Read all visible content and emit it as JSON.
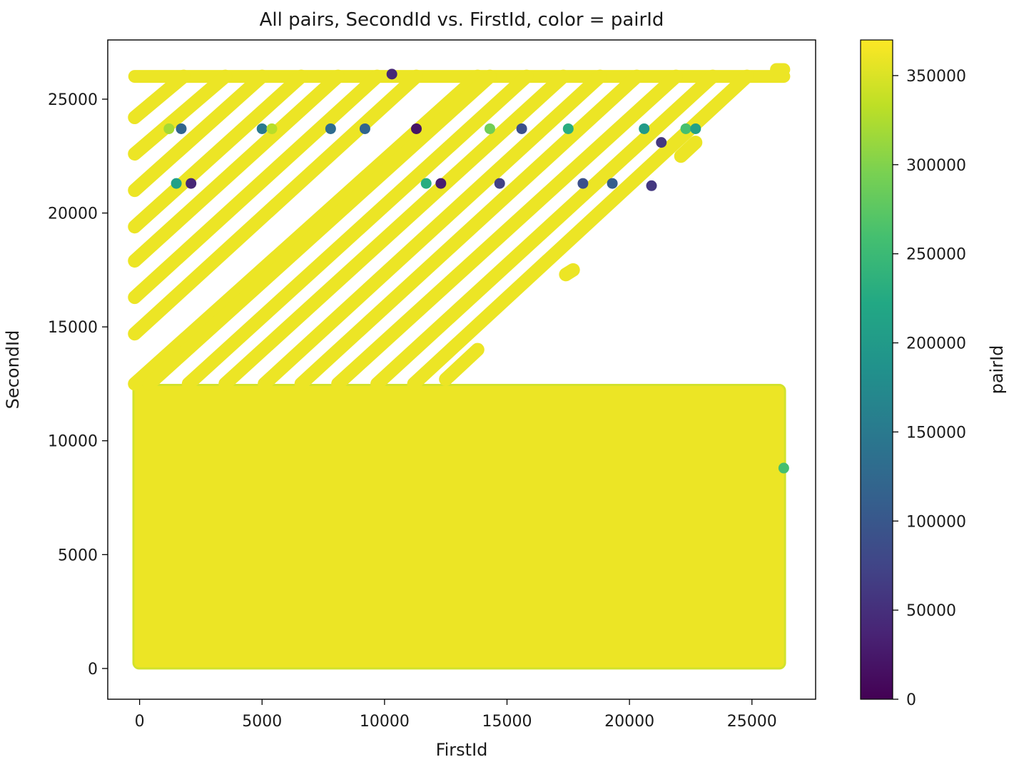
{
  "chart_data": {
    "type": "scatter",
    "title": "All pairs, SecondId vs. FirstId, color = pairId",
    "xlabel": "FirstId",
    "ylabel": "SecondId",
    "xlim": [
      -1300,
      27600
    ],
    "ylim": [
      -1350,
      27600
    ],
    "xticks": [
      0,
      5000,
      10000,
      15000,
      20000,
      25000
    ],
    "yticks": [
      0,
      5000,
      10000,
      15000,
      20000,
      25000
    ],
    "grid": false,
    "colorbar": {
      "label": "pairId",
      "colormap": "viridis",
      "range": [
        0,
        370000
      ],
      "ticks": [
        0,
        50000,
        100000,
        150000,
        200000,
        250000,
        300000,
        350000
      ]
    },
    "dense_block": {
      "x_range": [
        -250,
        26350
      ],
      "y_range": [
        0,
        12450
      ],
      "pairId_typical": 360000
    },
    "diagonal_bands": [
      {
        "x0": -200,
        "y0": 12500,
        "x1": 13800,
        "y1": 26000
      },
      {
        "x0": 400,
        "y0": 12500,
        "x1": 14300,
        "y1": 26000
      },
      {
        "x0": 2000,
        "y0": 12500,
        "x1": 15800,
        "y1": 26000
      },
      {
        "x0": 3500,
        "y0": 12500,
        "x1": 17300,
        "y1": 26000
      },
      {
        "x0": 5100,
        "y0": 12500,
        "x1": 18800,
        "y1": 26000
      },
      {
        "x0": 6600,
        "y0": 12500,
        "x1": 20300,
        "y1": 26000
      },
      {
        "x0": 8100,
        "y0": 12500,
        "x1": 21900,
        "y1": 26000
      },
      {
        "x0": 9700,
        "y0": 12500,
        "x1": 23400,
        "y1": 26000
      },
      {
        "x0": 11200,
        "y0": 12500,
        "x1": 24800,
        "y1": 26000
      },
      {
        "x0": 12500,
        "y0": 12700,
        "x1": 13800,
        "y1": 14000
      },
      {
        "x0": -200,
        "y0": 14700,
        "x1": 11300,
        "y1": 26000
      },
      {
        "x0": -200,
        "y0": 16300,
        "x1": 9700,
        "y1": 26000
      },
      {
        "x0": -200,
        "y0": 17900,
        "x1": 8100,
        "y1": 26000
      },
      {
        "x0": -200,
        "y0": 19400,
        "x1": 6600,
        "y1": 26000
      },
      {
        "x0": -200,
        "y0": 21000,
        "x1": 5000,
        "y1": 26000
      },
      {
        "x0": -200,
        "y0": 22600,
        "x1": 3500,
        "y1": 26000
      },
      {
        "x0": -200,
        "y0": 24200,
        "x1": 1800,
        "y1": 26000
      },
      {
        "x0": 17400,
        "y0": 17300,
        "x1": 17700,
        "y1": 17500
      },
      {
        "x0": 22100,
        "y0": 22500,
        "x1": 22700,
        "y1": 23100
      }
    ],
    "top_band": {
      "x_range": [
        -200,
        26300
      ],
      "y": 26000,
      "y_end": 26300
    },
    "outlier_points": [
      {
        "x": 1700,
        "y": 23700,
        "pairId": 120000
      },
      {
        "x": 5000,
        "y": 23700,
        "pairId": 150000
      },
      {
        "x": 5400,
        "y": 23700,
        "pairId": 330000
      },
      {
        "x": 7800,
        "y": 23700,
        "pairId": 130000
      },
      {
        "x": 9200,
        "y": 23700,
        "pairId": 120000
      },
      {
        "x": 11300,
        "y": 23700,
        "pairId": 20000
      },
      {
        "x": 14300,
        "y": 23700,
        "pairId": 290000
      },
      {
        "x": 17500,
        "y": 23700,
        "pairId": 230000
      },
      {
        "x": 20600,
        "y": 23700,
        "pairId": 200000
      },
      {
        "x": 22300,
        "y": 23700,
        "pairId": 260000
      },
      {
        "x": 22700,
        "y": 23700,
        "pairId": 210000
      },
      {
        "x": 1200,
        "y": 23700,
        "pairId": 320000
      },
      {
        "x": 1500,
        "y": 21300,
        "pairId": 210000
      },
      {
        "x": 2100,
        "y": 21300,
        "pairId": 40000
      },
      {
        "x": 11700,
        "y": 21300,
        "pairId": 230000
      },
      {
        "x": 12300,
        "y": 21300,
        "pairId": 30000
      },
      {
        "x": 14700,
        "y": 21300,
        "pairId": 70000
      },
      {
        "x": 20900,
        "y": 21200,
        "pairId": 60000
      },
      {
        "x": 21300,
        "y": 23100,
        "pairId": 60000
      },
      {
        "x": 18100,
        "y": 21300,
        "pairId": 90000
      },
      {
        "x": 19300,
        "y": 21300,
        "pairId": 110000
      },
      {
        "x": 10300,
        "y": 26100,
        "pairId": 40000
      },
      {
        "x": 15600,
        "y": 23700,
        "pairId": 90000
      },
      {
        "x": 26300,
        "y": 8800,
        "pairId": 260000
      }
    ]
  }
}
